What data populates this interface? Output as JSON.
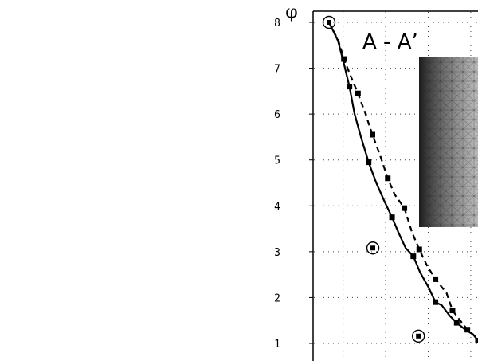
{
  "chart_data": {
    "type": "line",
    "ylabel": "φ",
    "y_ticks": [
      1,
      2,
      3,
      4,
      5,
      6,
      7,
      8
    ],
    "ylim": [
      0.6,
      8.3
    ],
    "xlim": [
      0,
      3.5
    ],
    "x_grid": [
      0.33,
      1.33,
      2.33,
      3.33
    ],
    "grid": true,
    "annotation": "A - A’",
    "series": [
      {
        "style": "solid",
        "marker": "square",
        "color": "#000000",
        "x": [
          0,
          0.21,
          0.35,
          0.48,
          0.6,
          0.75,
          0.93,
          1.11,
          1.3,
          1.48,
          1.64,
          1.8,
          1.98,
          2.14,
          2.34,
          2.5,
          2.65,
          2.84,
          3.0,
          3.2,
          3.38,
          3.5
        ],
        "y": [
          8.0,
          7.6,
          7.1,
          6.6,
          6.0,
          5.5,
          4.95,
          4.5,
          4.1,
          3.75,
          3.4,
          3.08,
          2.9,
          2.55,
          2.22,
          1.9,
          1.83,
          1.6,
          1.45,
          1.3,
          1.2,
          1.06
        ]
      },
      {
        "style": "dashed",
        "marker": "square",
        "color": "#000000",
        "x": [
          0,
          0.22,
          0.35,
          0.5,
          0.68,
          0.84,
          1.02,
          1.2,
          1.38,
          1.54,
          1.77,
          1.95,
          2.12,
          2.3,
          2.5,
          2.76,
          2.9,
          3.08,
          3.25,
          3.5
        ],
        "y": [
          8.0,
          7.6,
          7.2,
          6.85,
          6.45,
          6.05,
          5.55,
          5.1,
          4.6,
          4.25,
          3.95,
          3.42,
          3.05,
          2.7,
          2.4,
          2.1,
          1.72,
          1.5,
          1.3,
          1.1
        ]
      }
    ],
    "circle_markers": [
      {
        "x": 0.0,
        "y": 8.0
      },
      {
        "x": 1.03,
        "y": 3.08
      },
      {
        "x": 2.1,
        "y": 1.16
      }
    ]
  }
}
